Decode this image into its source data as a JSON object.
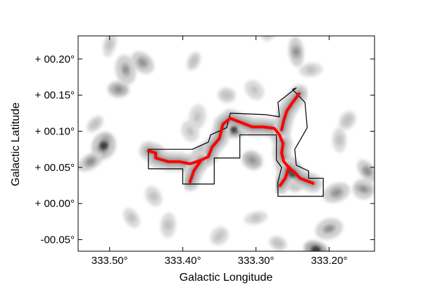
{
  "chart_data": {
    "type": "heatmap",
    "title": "",
    "xlabel": "Galactic Longitude",
    "ylabel": "Galactic Latitude",
    "x_axis_reversed": true,
    "xlim": [
      333.543,
      333.138
    ],
    "ylim": [
      -0.066,
      0.232
    ],
    "x_ticks": [
      {
        "value": 333.5,
        "label": "333.50°"
      },
      {
        "value": 333.4,
        "label": "333.40°"
      },
      {
        "value": 333.3,
        "label": "333.30°"
      },
      {
        "value": 333.2,
        "label": "333.20°"
      }
    ],
    "y_ticks": [
      {
        "value": 0.2,
        "label": "+ 00.20°"
      },
      {
        "value": 0.15,
        "label": "+ 00.15°"
      },
      {
        "value": 0.1,
        "label": "+ 00.10°"
      },
      {
        "value": 0.05,
        "label": "+ 00.05°"
      },
      {
        "value": 0.0,
        "label": "+ 00.00°"
      },
      {
        "value": -0.05,
        "label": "-00.05°"
      }
    ],
    "background_colormap": "grayscale emission contours (light gray to dark gray)",
    "overlays": {
      "region_outline_color": "#000000",
      "skeleton_color": "#ff0000"
    },
    "region_outline": [
      [
        333.447,
        0.075
      ],
      [
        333.447,
        0.048
      ],
      [
        333.4,
        0.048
      ],
      [
        333.4,
        0.027
      ],
      [
        333.357,
        0.027
      ],
      [
        333.357,
        0.063
      ],
      [
        333.322,
        0.063
      ],
      [
        333.322,
        0.08
      ],
      [
        333.322,
        0.095
      ],
      [
        333.272,
        0.095
      ],
      [
        333.272,
        0.06
      ],
      [
        333.265,
        0.05
      ],
      [
        333.27,
        0.03
      ],
      [
        333.27,
        0.01
      ],
      [
        333.208,
        0.01
      ],
      [
        333.208,
        0.035
      ],
      [
        333.228,
        0.035
      ],
      [
        333.228,
        0.045
      ],
      [
        333.245,
        0.053
      ],
      [
        333.247,
        0.075
      ],
      [
        333.23,
        0.105
      ],
      [
        333.233,
        0.14
      ],
      [
        333.25,
        0.158
      ],
      [
        333.245,
        0.16
      ],
      [
        333.27,
        0.14
      ],
      [
        333.268,
        0.12
      ],
      [
        333.287,
        0.123
      ],
      [
        333.335,
        0.125
      ],
      [
        333.34,
        0.105
      ],
      [
        333.362,
        0.095
      ],
      [
        333.365,
        0.085
      ],
      [
        333.387,
        0.075
      ]
    ],
    "skeleton": [
      [
        [
          333.447,
          0.073
        ],
        [
          333.437,
          0.07
        ],
        [
          333.437,
          0.063
        ],
        [
          333.42,
          0.058
        ],
        [
          333.405,
          0.058
        ],
        [
          333.39,
          0.055
        ],
        [
          333.375,
          0.06
        ],
        [
          333.365,
          0.065
        ],
        [
          333.36,
          0.078
        ],
        [
          333.35,
          0.09
        ],
        [
          333.345,
          0.11
        ],
        [
          333.335,
          0.118
        ],
        [
          333.32,
          0.112
        ],
        [
          333.305,
          0.106
        ],
        [
          333.29,
          0.106
        ],
        [
          333.275,
          0.104
        ],
        [
          333.268,
          0.095
        ],
        [
          333.263,
          0.083
        ],
        [
          333.265,
          0.07
        ],
        [
          333.262,
          0.058
        ],
        [
          333.255,
          0.05
        ],
        [
          333.246,
          0.042
        ],
        [
          333.24,
          0.035
        ],
        [
          333.222,
          0.028
        ]
      ],
      [
        [
          333.265,
          0.102
        ],
        [
          333.262,
          0.115
        ],
        [
          333.258,
          0.128
        ],
        [
          333.25,
          0.14
        ],
        [
          333.241,
          0.152
        ]
      ],
      [
        [
          333.255,
          0.05
        ],
        [
          333.26,
          0.035
        ],
        [
          333.267,
          0.025
        ]
      ],
      [
        [
          333.375,
          0.06
        ],
        [
          333.385,
          0.045
        ],
        [
          333.39,
          0.03
        ]
      ]
    ],
    "emission_peaks": [
      [
        333.33,
        0.103,
        "dark"
      ],
      [
        333.254,
        0.045,
        "dark"
      ],
      [
        333.25,
        0.04,
        "dark"
      ],
      [
        333.508,
        0.08,
        "dark"
      ],
      [
        333.526,
        0.058,
        "mid"
      ],
      [
        333.488,
        0.158,
        "mid"
      ],
      [
        333.455,
        0.195,
        "mid"
      ],
      [
        333.478,
        0.185,
        "mid"
      ],
      [
        333.385,
        0.197,
        "light"
      ],
      [
        333.37,
        0.072,
        "mid"
      ],
      [
        333.34,
        0.15,
        "light"
      ],
      [
        333.302,
        0.157,
        "light"
      ],
      [
        333.245,
        0.21,
        "mid"
      ],
      [
        333.282,
        0.238,
        "light"
      ],
      [
        333.19,
        0.015,
        "mid"
      ],
      [
        333.153,
        0.02,
        "mid"
      ],
      [
        333.148,
        0.045,
        "mid"
      ],
      [
        333.186,
        0.088,
        "light"
      ],
      [
        333.175,
        0.115,
        "light"
      ],
      [
        333.2,
        -0.035,
        "mid"
      ],
      [
        333.218,
        -0.064,
        "dark"
      ],
      [
        333.47,
        -0.02,
        "light"
      ],
      [
        333.42,
        -0.03,
        "light"
      ],
      [
        333.35,
        -0.045,
        "light"
      ],
      [
        333.3,
        -0.02,
        "light"
      ],
      [
        333.27,
        -0.055,
        "light"
      ],
      [
        333.44,
        0.01,
        "light"
      ],
      [
        333.38,
        0.12,
        "light"
      ],
      [
        333.52,
        0.11,
        "light"
      ],
      [
        333.225,
        0.185,
        "light"
      ],
      [
        333.305,
        0.06,
        "mid"
      ],
      [
        333.39,
        0.1,
        "light"
      ],
      [
        333.5,
        0.22,
        "light"
      ]
    ]
  }
}
